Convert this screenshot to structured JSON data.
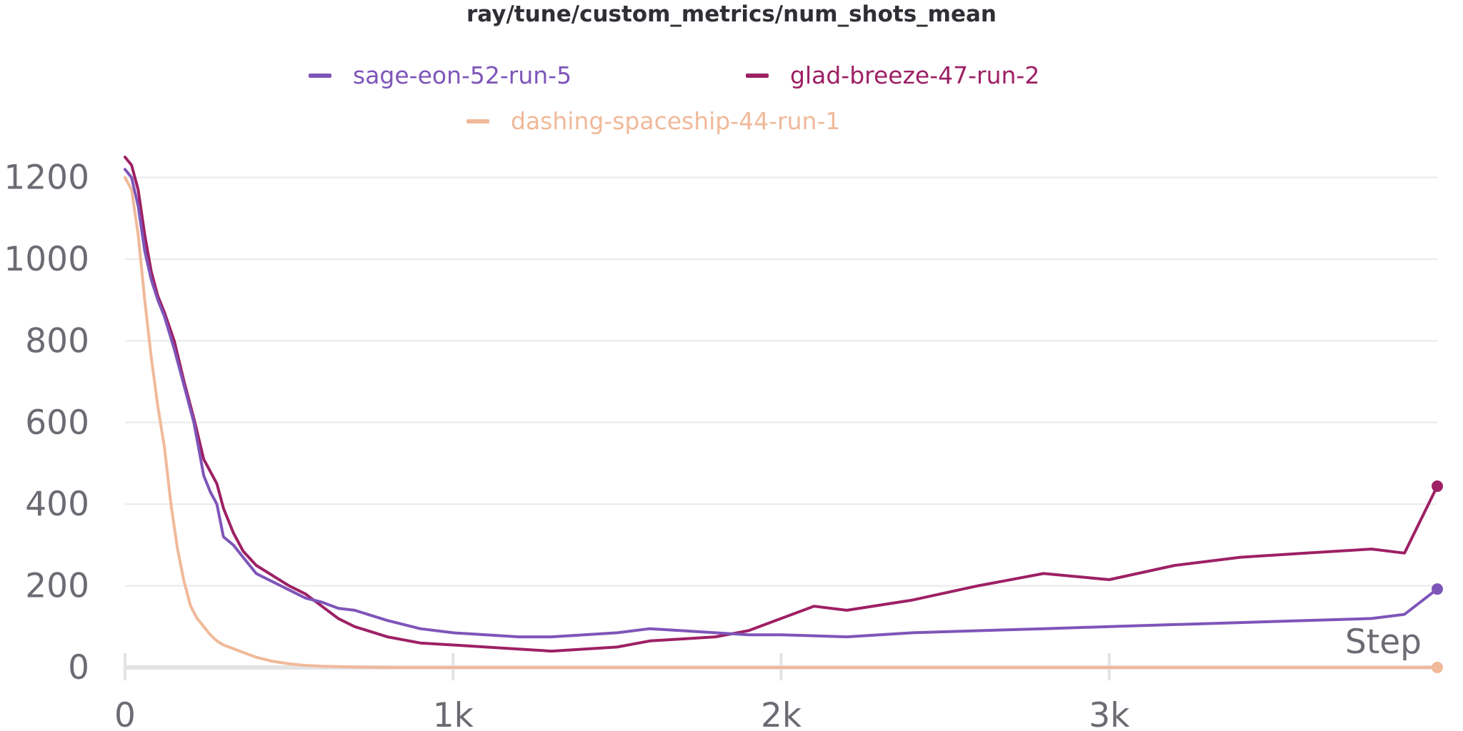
{
  "chart_data": {
    "type": "line",
    "title": "ray/tune/custom_metrics/num_shots_mean",
    "xlabel": "Step",
    "ylabel": "",
    "xlim": [
      0,
      4000
    ],
    "ylim": [
      0,
      1250
    ],
    "grid": true,
    "legend_position": "top",
    "x_ticks": [
      0,
      1000,
      2000,
      3000
    ],
    "x_tick_labels": [
      "0",
      "1k",
      "2k",
      "3k"
    ],
    "y_ticks": [
      0,
      200,
      400,
      600,
      800,
      1000,
      1200
    ],
    "y_tick_labels": [
      "0",
      "200",
      "400",
      "600",
      "800",
      "1000",
      "1200"
    ],
    "series": [
      {
        "name": "sage-eon-52-run-5",
        "color": "#7e55b9",
        "end_marker": [
          4000,
          192
        ],
        "x": [
          0,
          20,
          40,
          60,
          80,
          100,
          120,
          150,
          180,
          210,
          240,
          260,
          280,
          300,
          330,
          360,
          400,
          450,
          500,
          550,
          600,
          650,
          700,
          800,
          900,
          1000,
          1100,
          1200,
          1300,
          1400,
          1500,
          1600,
          1700,
          1800,
          1900,
          2000,
          2200,
          2400,
          2600,
          2800,
          3000,
          3200,
          3400,
          3600,
          3800,
          3900,
          4000
        ],
        "y": [
          1220,
          1200,
          1130,
          1020,
          950,
          900,
          860,
          780,
          690,
          600,
          470,
          430,
          400,
          320,
          300,
          270,
          230,
          210,
          190,
          170,
          160,
          145,
          140,
          115,
          95,
          85,
          80,
          75,
          75,
          80,
          85,
          95,
          90,
          85,
          80,
          80,
          75,
          85,
          90,
          95,
          100,
          105,
          110,
          115,
          120,
          130,
          192
        ]
      },
      {
        "name": "glad-breeze-47-run-2",
        "color": "#9d2064",
        "end_marker": [
          4000,
          444
        ],
        "x": [
          0,
          20,
          40,
          60,
          80,
          100,
          120,
          150,
          180,
          210,
          240,
          260,
          280,
          300,
          330,
          360,
          400,
          450,
          500,
          550,
          600,
          650,
          700,
          800,
          900,
          1000,
          1100,
          1200,
          1300,
          1400,
          1500,
          1600,
          1700,
          1800,
          1900,
          2000,
          2100,
          2200,
          2400,
          2600,
          2800,
          3000,
          3200,
          3400,
          3600,
          3800,
          3900,
          4000
        ],
        "y": [
          1250,
          1230,
          1170,
          1060,
          970,
          910,
          870,
          800,
          700,
          610,
          510,
          480,
          450,
          390,
          330,
          285,
          250,
          225,
          200,
          180,
          150,
          120,
          100,
          75,
          60,
          55,
          50,
          45,
          40,
          45,
          50,
          65,
          70,
          75,
          90,
          120,
          150,
          140,
          165,
          200,
          230,
          215,
          250,
          270,
          280,
          290,
          280,
          444
        ]
      },
      {
        "name": "dashing-spaceship-44-run-1",
        "color": "#f0b999",
        "end_marker": [
          4000,
          0
        ],
        "x": [
          0,
          20,
          40,
          60,
          80,
          100,
          120,
          140,
          160,
          180,
          200,
          220,
          240,
          260,
          280,
          300,
          350,
          400,
          450,
          500,
          550,
          600,
          700,
          800,
          900,
          1000,
          1500,
          2000,
          3000,
          4000
        ],
        "y": [
          1200,
          1170,
          1060,
          900,
          760,
          640,
          540,
          400,
          290,
          210,
          150,
          120,
          100,
          80,
          65,
          55,
          40,
          25,
          15,
          9,
          5,
          3,
          1,
          0,
          0,
          0,
          0,
          0,
          0,
          0
        ]
      }
    ]
  }
}
